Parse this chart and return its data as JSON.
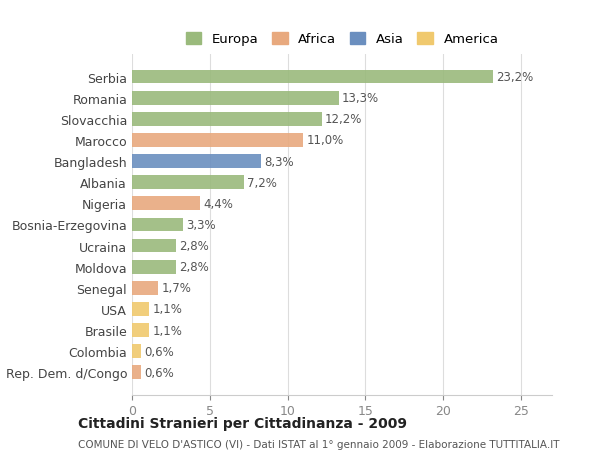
{
  "countries": [
    "Serbia",
    "Romania",
    "Slovacchia",
    "Marocco",
    "Bangladesh",
    "Albania",
    "Nigeria",
    "Bosnia-Erzegovina",
    "Ucraina",
    "Moldova",
    "Senegal",
    "USA",
    "Brasile",
    "Colombia",
    "Rep. Dem. d/Congo"
  ],
  "values": [
    23.2,
    13.3,
    12.2,
    11.0,
    8.3,
    7.2,
    4.4,
    3.3,
    2.8,
    2.8,
    1.7,
    1.1,
    1.1,
    0.6,
    0.6
  ],
  "labels": [
    "23,2%",
    "13,3%",
    "12,2%",
    "11,0%",
    "8,3%",
    "7,2%",
    "4,4%",
    "3,3%",
    "2,8%",
    "2,8%",
    "1,7%",
    "1,1%",
    "1,1%",
    "0,6%",
    "0,6%"
  ],
  "continents": [
    "Europa",
    "Europa",
    "Europa",
    "Africa",
    "Asia",
    "Europa",
    "Africa",
    "Europa",
    "Europa",
    "Europa",
    "Africa",
    "America",
    "America",
    "America",
    "Africa"
  ],
  "colors": {
    "Europa": "#9aba7c",
    "Africa": "#e8a97e",
    "Asia": "#6b8fbf",
    "America": "#f0c96e"
  },
  "legend_order": [
    "Europa",
    "Africa",
    "Asia",
    "America"
  ],
  "title": "Cittadini Stranieri per Cittadinanza - 2009",
  "subtitle": "COMUNE DI VELO D'ASTICO (VI) - Dati ISTAT al 1° gennaio 2009 - Elaborazione TUTTITALIA.IT",
  "xlim": [
    0,
    27
  ],
  "xticks": [
    0,
    5,
    10,
    15,
    20,
    25
  ],
  "background_color": "#ffffff",
  "grid_color": "#dddddd"
}
